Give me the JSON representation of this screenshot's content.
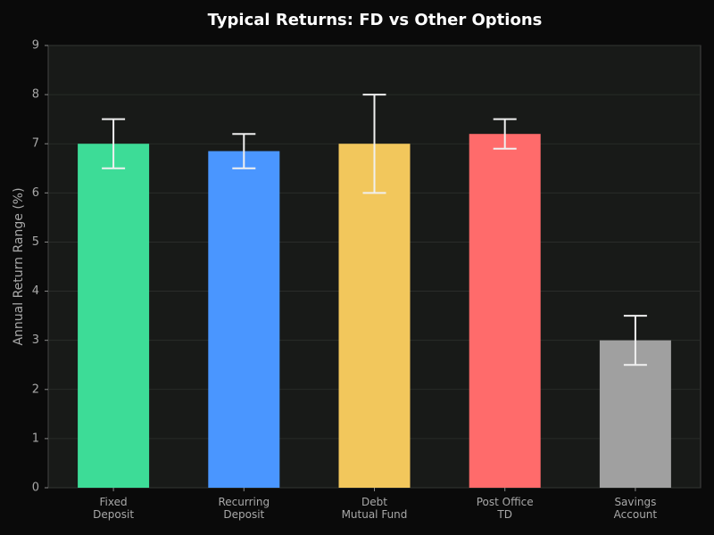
{
  "chart_data": {
    "type": "bar",
    "title": "Typical Returns: FD vs Other Options",
    "y_label": "Annual Return Range (%)",
    "categories": [
      "Fixed\nDeposit",
      "Recurring\nDeposit",
      "Debt\nMutual Fund",
      "Post Office\nTD",
      "Savings\nAccount"
    ],
    "values": [
      7.0,
      6.85,
      7.0,
      7.2,
      3.0
    ],
    "errors": [
      0.5,
      0.35,
      1.0,
      0.3,
      0.5
    ],
    "colors": [
      "#3ddc97",
      "#4a96ff",
      "#f2c75c",
      "#ff6b6b",
      "#a0a0a0"
    ],
    "ylim": [
      0,
      9
    ],
    "yticks": [
      0,
      1,
      2,
      3,
      4,
      5,
      6,
      7,
      8,
      9
    ],
    "grid": true
  }
}
